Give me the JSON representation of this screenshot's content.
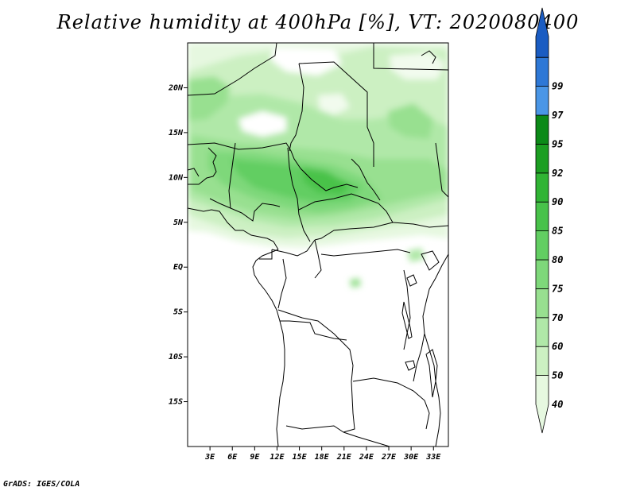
{
  "title": "Relative humidity at 400hPa [%], VT: 2020080400",
  "footer": "GrADS: IGES/COLA",
  "map": {
    "lon_labels": [
      "3E",
      "6E",
      "9E",
      "12E",
      "15E",
      "18E",
      "21E",
      "24E",
      "27E",
      "30E",
      "33E"
    ],
    "lat_labels": [
      "20N",
      "15N",
      "10N",
      "5N",
      "EQ",
      "5S",
      "10S",
      "15S"
    ],
    "lon_range": [
      0,
      35
    ],
    "lat_range": [
      -20,
      25
    ],
    "field": "relative humidity",
    "level": "400hPa",
    "units": "%"
  },
  "colorbar": {
    "levels": [
      "40",
      "50",
      "60",
      "70",
      "75",
      "80",
      "85",
      "90",
      "92",
      "95",
      "97",
      "99"
    ],
    "colors": [
      "#e6f8e0",
      "#ccf0c2",
      "#b0e8a8",
      "#98e090",
      "#7ed87a",
      "#62ce62",
      "#48c24a",
      "#30b434",
      "#1c9e22",
      "#0c8a18",
      "#4a96e6",
      "#2e78d6",
      "#1a5cc2"
    ]
  }
}
